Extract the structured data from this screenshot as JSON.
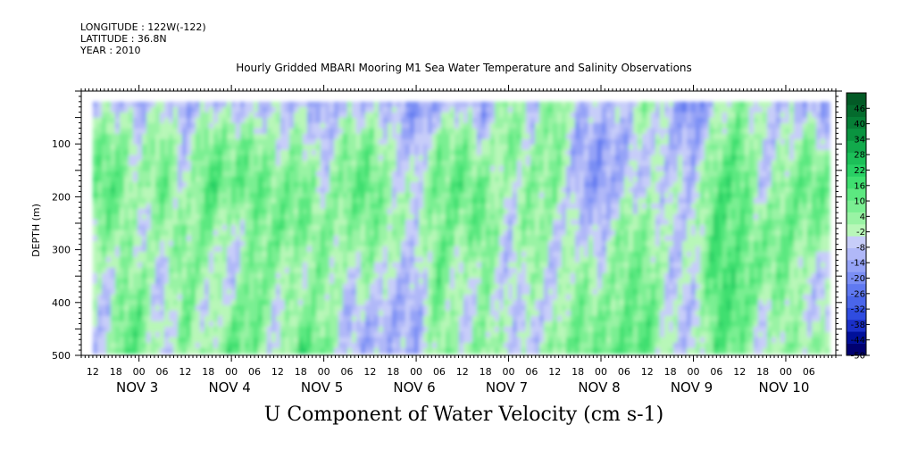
{
  "header": {
    "longitude": "LONGITUDE : 122W(-122)",
    "latitude": "LATITUDE : 36.8N",
    "year": "YEAR : 2010"
  },
  "chart_data": {
    "type": "heatmap",
    "title": "Hourly Gridded MBARI Mooring M1 Sea Water Temperature and Salinity Observations",
    "variable_label": "U Component of Water Velocity (cm s-1)",
    "ylabel": "DEPTH (m)",
    "ylim": [
      500,
      0
    ],
    "y_ticks": [
      100,
      200,
      300,
      400,
      500
    ],
    "y_data_range": [
      20,
      490
    ],
    "time_axis": {
      "start": "2010-11-02T09:00",
      "end": "2010-11-10T13:00",
      "data_start": "2010-11-02T12:00",
      "data_end": "2010-11-10T11:00",
      "hour_labels": [
        "12",
        "18",
        "00",
        "06",
        "12",
        "18",
        "00",
        "06",
        "12",
        "18",
        "00",
        "06",
        "12",
        "18",
        "00",
        "06",
        "12",
        "18",
        "00",
        "06",
        "12",
        "18",
        "00",
        "06",
        "12",
        "18",
        "00",
        "06",
        "12",
        "18",
        "00",
        "06"
      ],
      "first_label_time": "2010-11-02T12:00",
      "label_step_hours": 6,
      "day_labels": [
        "NOV 3",
        "NOV 4",
        "NOV 5",
        "NOV 6",
        "NOV 7",
        "NOV 8",
        "NOV 9",
        "NOV 10"
      ],
      "day_label_dates": [
        "2010-11-03",
        "2010-11-04",
        "2010-11-05",
        "2010-11-06",
        "2010-11-07",
        "2010-11-08",
        "2010-11-09",
        "2010-11-10"
      ]
    },
    "colorbar": {
      "levels": [
        -50,
        -44,
        -38,
        -32,
        -26,
        -20,
        -14,
        -8,
        -2,
        4,
        10,
        16,
        22,
        28,
        34,
        40,
        46
      ],
      "min": -50,
      "max": 52,
      "step": 3,
      "colors_low_to_high": [
        "#000070",
        "#00109a",
        "#1a2fc8",
        "#2f4ce0",
        "#4a66ea",
        "#6079f0",
        "#7a8ef4",
        "#95a3f7",
        "#b0b8f8",
        "#c7cdf9",
        "#b8f7b8",
        "#99f3a4",
        "#7aef92",
        "#5ce880",
        "#3fdf70",
        "#28d064",
        "#1cbf58",
        "#12aa4c",
        "#0a9440",
        "#067e36",
        "#046b2d",
        "#035a26"
      ]
    },
    "field_description_source": "approximation of plotted U velocity field",
    "columns": [
      {
        "t": "2010-11-02T12:00",
        "u": [
          -10,
          6,
          10,
          4,
          -6,
          -4,
          -8
        ]
      },
      {
        "t": "2010-11-02T16:00",
        "u": [
          -6,
          10,
          14,
          8,
          -4,
          -8,
          -2
        ]
      },
      {
        "t": "2010-11-02T20:00",
        "u": [
          -8,
          4,
          8,
          6,
          2,
          10,
          14
        ]
      },
      {
        "t": "2010-11-03T00:00",
        "u": [
          -12,
          -4,
          -2,
          -6,
          4,
          12,
          10
        ]
      },
      {
        "t": "2010-11-03T06:00",
        "u": [
          -4,
          8,
          12,
          4,
          -8,
          -10,
          -6
        ]
      },
      {
        "t": "2010-11-03T12:00",
        "u": [
          -14,
          -8,
          -6,
          4,
          8,
          10,
          6
        ]
      },
      {
        "t": "2010-11-03T18:00",
        "u": [
          -6,
          10,
          16,
          8,
          2,
          -8,
          -4
        ]
      },
      {
        "t": "2010-11-04T00:00",
        "u": [
          -8,
          6,
          10,
          -4,
          -10,
          4,
          14
        ]
      },
      {
        "t": "2010-11-04T06:00",
        "u": [
          -12,
          8,
          12,
          6,
          10,
          12,
          8
        ]
      },
      {
        "t": "2010-11-04T12:00",
        "u": [
          -6,
          -4,
          6,
          10,
          4,
          -6,
          -8
        ]
      },
      {
        "t": "2010-11-04T18:00",
        "u": [
          -10,
          4,
          12,
          8,
          -2,
          6,
          16
        ]
      },
      {
        "t": "2010-11-05T00:00",
        "u": [
          -14,
          -10,
          -4,
          6,
          8,
          4,
          10
        ]
      },
      {
        "t": "2010-11-05T06:00",
        "u": [
          -8,
          6,
          10,
          4,
          -6,
          -10,
          -8
        ]
      },
      {
        "t": "2010-11-05T12:00",
        "u": [
          -10,
          8,
          14,
          8,
          4,
          -8,
          -14
        ]
      },
      {
        "t": "2010-11-05T18:00",
        "u": [
          -8,
          -6,
          -2,
          4,
          -8,
          -12,
          -10
        ]
      },
      {
        "t": "2010-11-06T00:00",
        "u": [
          -20,
          -12,
          -4,
          -6,
          -10,
          -14,
          -12
        ]
      },
      {
        "t": "2010-11-06T06:00",
        "u": [
          -14,
          6,
          10,
          8,
          12,
          10,
          6
        ]
      },
      {
        "t": "2010-11-06T12:00",
        "u": [
          -6,
          8,
          12,
          6,
          -4,
          -8,
          -2
        ]
      },
      {
        "t": "2010-11-06T18:00",
        "u": [
          -18,
          -6,
          8,
          12,
          6,
          4,
          8
        ]
      },
      {
        "t": "2010-11-07T00:00",
        "u": [
          6,
          10,
          -4,
          -8,
          -10,
          -6,
          -4
        ]
      },
      {
        "t": "2010-11-07T06:00",
        "u": [
          -8,
          -4,
          6,
          8,
          4,
          -6,
          -8
        ]
      },
      {
        "t": "2010-11-07T12:00",
        "u": [
          8,
          10,
          6,
          -4,
          -8,
          -4,
          6
        ]
      },
      {
        "t": "2010-11-07T18:00",
        "u": [
          -10,
          -14,
          -12,
          -6,
          4,
          8,
          10
        ]
      },
      {
        "t": "2010-11-08T00:00",
        "u": [
          -6,
          -16,
          -18,
          -10,
          -4,
          6,
          8
        ]
      },
      {
        "t": "2010-11-08T06:00",
        "u": [
          -8,
          -12,
          -8,
          6,
          10,
          8,
          12
        ]
      },
      {
        "t": "2010-11-08T12:00",
        "u": [
          6,
          -4,
          -6,
          4,
          8,
          12,
          14
        ]
      },
      {
        "t": "2010-11-08T18:00",
        "u": [
          -12,
          -8,
          -4,
          -6,
          -8,
          -4,
          -6
        ]
      },
      {
        "t": "2010-11-09T00:00",
        "u": [
          -22,
          -14,
          -8,
          -6,
          -4,
          -10,
          -6
        ]
      },
      {
        "t": "2010-11-09T06:00",
        "u": [
          -8,
          4,
          14,
          16,
          18,
          14,
          12
        ]
      },
      {
        "t": "2010-11-09T12:00",
        "u": [
          4,
          12,
          16,
          10,
          12,
          16,
          10
        ]
      },
      {
        "t": "2010-11-09T18:00",
        "u": [
          -4,
          -6,
          -8,
          6,
          8,
          -4,
          -8
        ]
      },
      {
        "t": "2010-11-10T00:00",
        "u": [
          -8,
          -4,
          6,
          10,
          8,
          6,
          4
        ]
      },
      {
        "t": "2010-11-10T06:00",
        "u": [
          -14,
          8,
          12,
          6,
          -4,
          -6,
          4
        ]
      },
      {
        "t": "2010-11-10T11:00",
        "u": [
          -16,
          -6,
          10,
          8,
          -6,
          -8,
          6
        ]
      }
    ],
    "depth_rows": [
      20,
      100,
      180,
      260,
      340,
      420,
      490
    ]
  }
}
